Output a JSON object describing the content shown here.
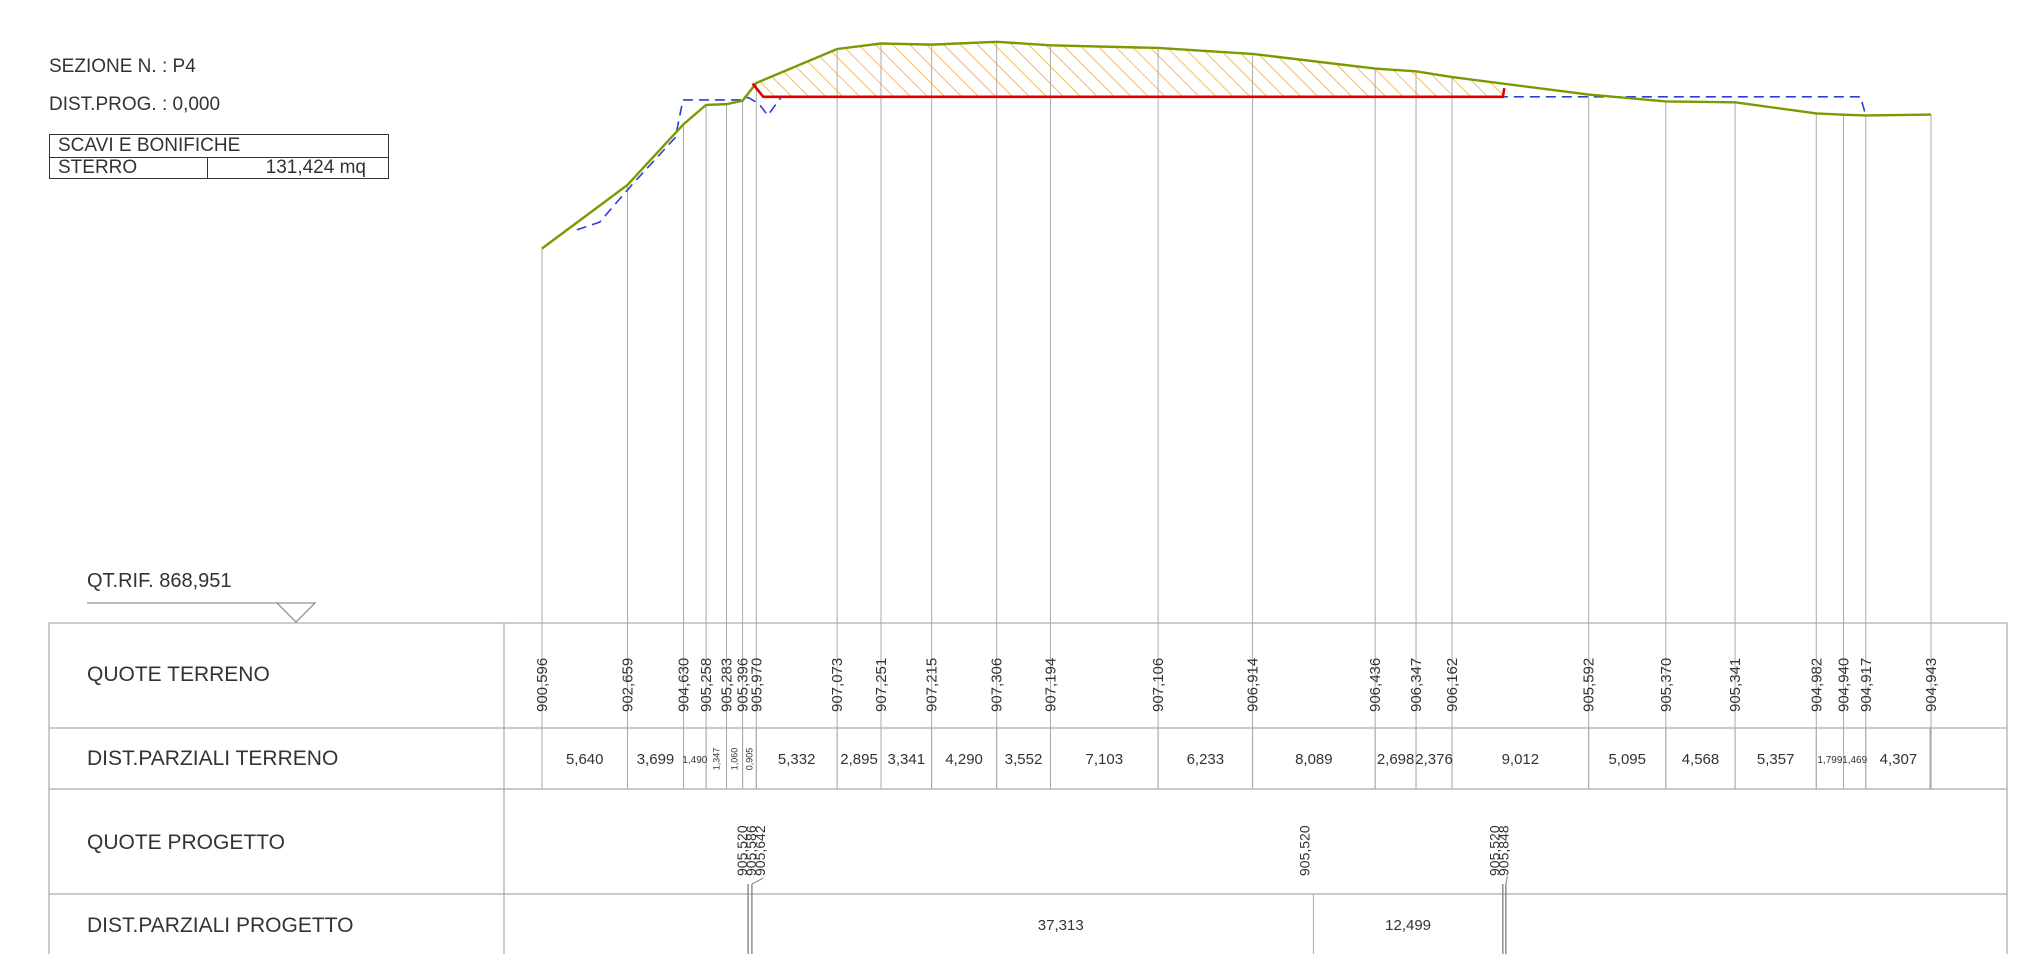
{
  "section": {
    "number_label": "SEZIONE N. : P4",
    "dist_prog_label": "DIST.PROG. : 0,000"
  },
  "excavation_table": {
    "title": "SCAVI E BONIFICHE",
    "row_label": "STERRO",
    "row_value": "131,424 mq"
  },
  "reference": {
    "label": "QT.RIF. 868,951"
  },
  "rows": {
    "quote_terreno": "QUOTE TERRENO",
    "dist_parziali_terreno": "DIST.PARZIALI TERRENO",
    "quote_progetto": "QUOTE PROGETTO",
    "dist_parziali_progetto": "DIST.PARZIALI PROGETTO"
  },
  "colors": {
    "terrain_line": "#7a9a01",
    "project_line": "#e00000",
    "existing_dashed": "#2b3fd9",
    "hatch": "#f0a020",
    "grid": "#aaaaaa",
    "text": "#333333"
  },
  "chart_data": {
    "type": "cross-section",
    "terrain_points": [
      {
        "x": 0.0,
        "z": 900.596
      },
      {
        "x": 5.64,
        "z": 902.659
      },
      {
        "x": 9.339,
        "z": 904.63
      },
      {
        "x": 10.829,
        "z": 905.258
      },
      {
        "x": 12.176,
        "z": 905.283
      },
      {
        "x": 13.236,
        "z": 905.396
      },
      {
        "x": 14.141,
        "z": 905.97
      },
      {
        "x": 19.473,
        "z": 907.073
      },
      {
        "x": 22.368,
        "z": 907.251
      },
      {
        "x": 25.709,
        "z": 907.215
      },
      {
        "x": 29.999,
        "z": 907.306
      },
      {
        "x": 33.551,
        "z": 907.194
      },
      {
        "x": 40.654,
        "z": 907.106
      },
      {
        "x": 46.887,
        "z": 906.914
      },
      {
        "x": 54.976,
        "z": 906.436
      },
      {
        "x": 57.674,
        "z": 906.347
      },
      {
        "x": 60.05,
        "z": 906.162
      },
      {
        "x": 69.062,
        "z": 905.592
      },
      {
        "x": 74.157,
        "z": 905.37
      },
      {
        "x": 78.725,
        "z": 905.341
      },
      {
        "x": 84.082,
        "z": 904.982
      },
      {
        "x": 85.881,
        "z": 904.94
      },
      {
        "x": 87.35,
        "z": 904.917
      },
      {
        "x": 91.657,
        "z": 904.943
      }
    ],
    "terrain_elevations": [
      "900,596",
      "902,659",
      "904,630",
      "905,258",
      "905,283",
      "905,396",
      "905,970",
      "907,073",
      "907,251",
      "907,215",
      "907,306",
      "907,194",
      "907,106",
      "906,914",
      "906,436",
      "906,347",
      "906,162",
      "905,592",
      "905,370",
      "905,341",
      "904,982",
      "904,940",
      "904,917",
      "904,943"
    ],
    "terrain_partial_distances": [
      "5,640",
      "3,699",
      "1,490",
      "1,347",
      "1,060",
      "0,905",
      "5,332",
      "2,895",
      "3,341",
      "4,290",
      "3,552",
      "7,103",
      "6,233",
      "8,089",
      "2,698",
      "2,376",
      "9,012",
      "5,095",
      "4,568",
      "5,357",
      "1,799",
      "1,469",
      "4,307"
    ],
    "project_points": [
      {
        "x": 13.6,
        "z": 905.52
      },
      {
        "x": 13.66,
        "z": 905.586
      },
      {
        "x": 14.1,
        "z": 905.642
      },
      {
        "x": 50.9,
        "z": 905.52
      },
      {
        "x": 63.399,
        "z": 905.52
      },
      {
        "x": 63.47,
        "z": 905.848
      }
    ],
    "project_elevations": [
      {
        "x": 13.8,
        "labels": [
          "905,520",
          "905,586",
          "905,642"
        ]
      },
      {
        "x": 50.9,
        "labels": [
          "905,520"
        ]
      },
      {
        "x": 63.43,
        "labels": [
          "905,520",
          "905,848"
        ]
      }
    ],
    "project_partial_distances": [
      {
        "from": 13.6,
        "to": 50.9,
        "label": "37,313"
      },
      {
        "from": 50.9,
        "to": 63.399,
        "label": "12,499"
      }
    ],
    "existing_dashed_points": [
      {
        "x": 2.3,
        "z": 901.2
      },
      {
        "x": 3.8,
        "z": 901.45
      },
      {
        "x": 6.0,
        "z": 902.7
      },
      {
        "x": 8.8,
        "z": 904.2
      },
      {
        "x": 9.3,
        "z": 905.42
      },
      {
        "x": 13.1,
        "z": 905.42
      },
      {
        "x": 13.6,
        "z": 905.5
      },
      {
        "x": 14.3,
        "z": 905.3
      },
      {
        "x": 14.9,
        "z": 904.92
      },
      {
        "x": 15.8,
        "z": 905.52
      },
      {
        "x": 50.9,
        "z": 905.52
      },
      {
        "x": 63.4,
        "z": 905.52
      },
      {
        "x": 87.0,
        "z": 905.52
      },
      {
        "x": 87.35,
        "z": 904.917
      }
    ],
    "cut_area_label": "131,424 mq"
  }
}
